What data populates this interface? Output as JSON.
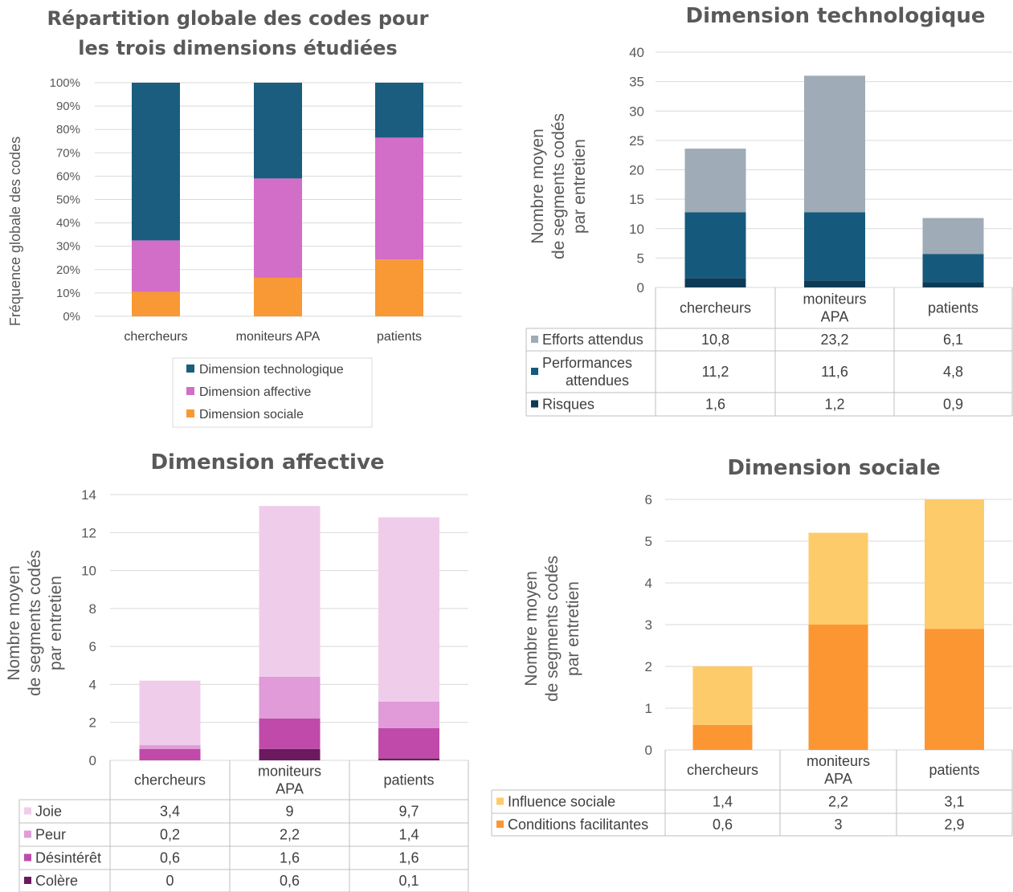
{
  "colors": {
    "tech_dark": "#1a5d7e",
    "affective_mag": "#d36ec8",
    "social_orange": "#f89935",
    "efforts": "#9fabb6",
    "performances": "#155a7d",
    "risques": "#0d3b56",
    "joie": "#f0cceb",
    "peur": "#e09bd8",
    "desinteret": "#c04aaa",
    "colere": "#6b1a5f",
    "influence": "#fecb6a",
    "conditions": "#fb9633"
  },
  "chart_data": [
    {
      "id": "global",
      "type": "bar",
      "stacked": "percent",
      "title_lines": [
        "Répartition globale des codes pour",
        "les trois dimensions étudiées"
      ],
      "ylabel": "Fréquence globale des codes",
      "xlabel": "",
      "ylim": [
        0,
        100
      ],
      "yticks": [
        "0%",
        "10%",
        "20%",
        "30%",
        "40%",
        "50%",
        "60%",
        "70%",
        "80%",
        "90%",
        "100%"
      ],
      "categories": [
        "chercheurs",
        "moniteurs APA",
        "patients"
      ],
      "series": [
        {
          "name": "Dimension sociale",
          "color_key": "social_orange",
          "values": [
            10.5,
            16.5,
            24.3
          ]
        },
        {
          "name": "Dimension affective",
          "color_key": "affective_mag",
          "values": [
            22,
            42.5,
            52.2
          ]
        },
        {
          "name": "Dimension technologique",
          "color_key": "tech_dark",
          "values": [
            67.5,
            41,
            23.5
          ]
        }
      ],
      "legend": [
        "Dimension technologique",
        "Dimension affective",
        "Dimension sociale"
      ],
      "legend_position": "bottom",
      "grid": true
    },
    {
      "id": "tech",
      "type": "bar",
      "stacked": "absolute",
      "title": "Dimension technologique",
      "ylabel_lines": [
        "Nombre moyen",
        "de segments codés",
        "par entretien"
      ],
      "ylim": [
        0,
        40
      ],
      "yticks": [
        "0",
        "5",
        "10",
        "15",
        "20",
        "25",
        "30",
        "35",
        "40"
      ],
      "categories": [
        [
          "chercheurs"
        ],
        [
          "moniteurs",
          "APA"
        ],
        [
          "patients"
        ]
      ],
      "series": [
        {
          "name": "Risques",
          "color_key": "risques",
          "values": [
            1.6,
            1.2,
            0.9
          ],
          "labels": [
            "1,6",
            "1,2",
            "0,9"
          ]
        },
        {
          "name": "Performances attendues",
          "name_lines": [
            "Performances",
            "attendues"
          ],
          "color_key": "performances",
          "values": [
            11.2,
            11.6,
            4.8
          ],
          "labels": [
            "11,2",
            "11,6",
            "4,8"
          ]
        },
        {
          "name": "Efforts attendus",
          "color_key": "efforts",
          "values": [
            10.8,
            23.2,
            6.1
          ],
          "labels": [
            "10,8",
            "23,2",
            "6,1"
          ]
        }
      ],
      "table_order": [
        "Efforts attendus",
        "Performances attendues",
        "Risques"
      ],
      "grid": true
    },
    {
      "id": "aff",
      "type": "bar",
      "stacked": "absolute",
      "title": "Dimension affective",
      "ylabel_lines": [
        "Nombre moyen",
        "de segments codés",
        "par entretien"
      ],
      "ylim": [
        0,
        14
      ],
      "yticks": [
        "0",
        "2",
        "4",
        "6",
        "8",
        "10",
        "12",
        "14"
      ],
      "categories": [
        [
          "chercheurs"
        ],
        [
          "moniteurs",
          "APA"
        ],
        [
          "patients"
        ]
      ],
      "series": [
        {
          "name": "Colère",
          "color_key": "colere",
          "values": [
            0,
            0.6,
            0.1
          ],
          "labels": [
            "0",
            "0,6",
            "0,1"
          ]
        },
        {
          "name": "Désintérêt",
          "color_key": "desinteret",
          "values": [
            0.6,
            1.6,
            1.6
          ],
          "labels": [
            "0,6",
            "1,6",
            "1,6"
          ]
        },
        {
          "name": "Peur",
          "color_key": "peur",
          "values": [
            0.2,
            2.2,
            1.4
          ],
          "labels": [
            "0,2",
            "2,2",
            "1,4"
          ]
        },
        {
          "name": "Joie",
          "color_key": "joie",
          "values": [
            3.4,
            9,
            9.7
          ],
          "labels": [
            "3,4",
            "9",
            "9,7"
          ]
        }
      ],
      "table_order": [
        "Joie",
        "Peur",
        "Désintérêt",
        "Colère"
      ],
      "grid": true
    },
    {
      "id": "soc",
      "type": "bar",
      "stacked": "absolute",
      "title": "Dimension sociale",
      "ylabel_lines": [
        "Nombre moyen",
        "de segments codés",
        "par entretien"
      ],
      "ylim": [
        0,
        6
      ],
      "yticks": [
        "0",
        "1",
        "2",
        "3",
        "4",
        "5",
        "6"
      ],
      "categories": [
        [
          "chercheurs"
        ],
        [
          "moniteurs",
          "APA"
        ],
        [
          "patients"
        ]
      ],
      "series": [
        {
          "name": "Conditions facilitantes",
          "color_key": "conditions",
          "values": [
            0.6,
            3,
            2.9
          ],
          "labels": [
            "0,6",
            "3",
            "2,9"
          ]
        },
        {
          "name": "Influence sociale",
          "color_key": "influence",
          "values": [
            1.4,
            2.2,
            3.1
          ],
          "labels": [
            "1,4",
            "2,2",
            "3,1"
          ]
        }
      ],
      "table_order": [
        "Influence sociale",
        "Conditions facilitantes"
      ],
      "grid": true
    }
  ]
}
